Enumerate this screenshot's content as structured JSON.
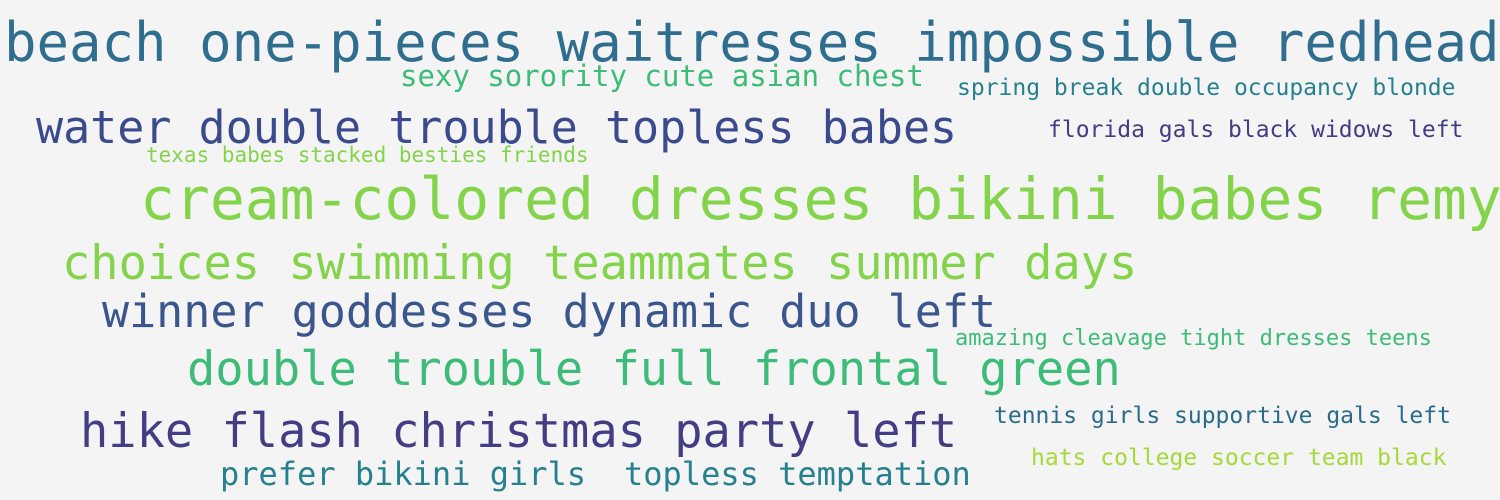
{
  "palette": {
    "background": "#f4f4f4",
    "teal_blue": "#2f6e8e",
    "green_mid": "#3dbb78",
    "teal": "#26818e",
    "indigo": "#3b4a8c",
    "lime": "#84d44b",
    "yellow_green": "#a6d83a",
    "blue_indigo": "#3a568c",
    "purple_indigo": "#433d84",
    "teal_dark": "#2a6b8a"
  },
  "phrases": [
    {
      "id": "w1",
      "text": "beach one-pieces waitresses impossible redhead"
    },
    {
      "id": "w2",
      "text": "sexy sorority cute asian chest"
    },
    {
      "id": "w3",
      "text": "spring break double occupancy blonde"
    },
    {
      "id": "w4",
      "text": "water double trouble topless babes"
    },
    {
      "id": "w5",
      "text": "florida gals black widows left"
    },
    {
      "id": "w6",
      "text": "texas babes stacked besties friends"
    },
    {
      "id": "w7",
      "text": "cream-colored dresses bikini babes remy"
    },
    {
      "id": "w8",
      "text": "choices swimming teammates summer days"
    },
    {
      "id": "w9",
      "text": "winner goddesses dynamic duo left"
    },
    {
      "id": "w10",
      "text": "amazing cleavage tight dresses teens"
    },
    {
      "id": "w11",
      "text": "double trouble full frontal green"
    },
    {
      "id": "w12",
      "text": "hike flash christmas party left"
    },
    {
      "id": "w13",
      "text": "tennis girls supportive gals left"
    },
    {
      "id": "w14",
      "text": "hats college soccer team black"
    },
    {
      "id": "w15",
      "text": "prefer bikini girls"
    },
    {
      "id": "w16",
      "text": "topless temptation"
    }
  ]
}
